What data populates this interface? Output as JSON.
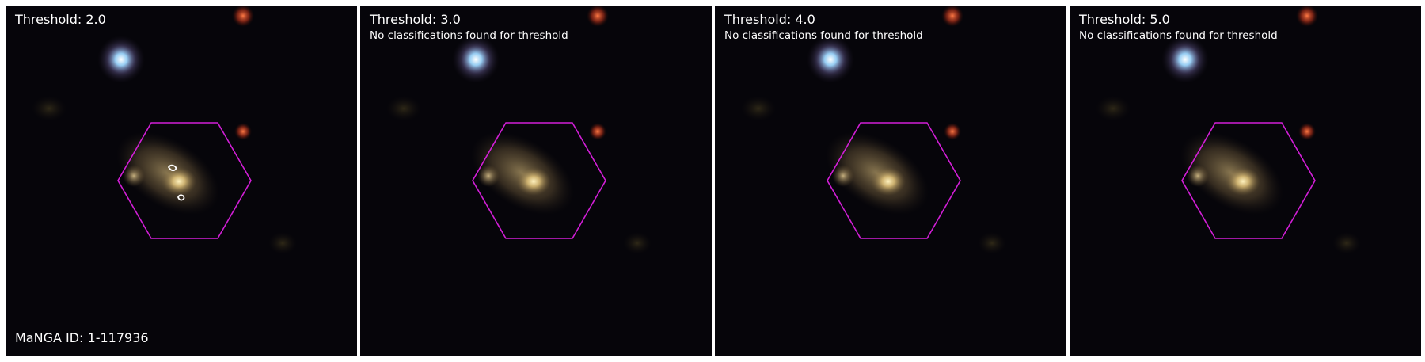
{
  "panels": [
    {
      "title": "Threshold: 2.0",
      "note": "",
      "has_contours": true
    },
    {
      "title": "Threshold: 3.0",
      "note": "No classifications found for threshold",
      "has_contours": false
    },
    {
      "title": "Threshold: 4.0",
      "note": "No classifications found for threshold",
      "has_contours": false
    },
    {
      "title": "Threshold: 5.0",
      "note": "No classifications found for threshold",
      "has_contours": false
    }
  ],
  "manga_id": "MaNGA ID: 1-117936",
  "colors": {
    "hexagon": "#d21ed7",
    "contour": "#ffffff",
    "background": "#06050a",
    "galaxy_core": "#ffe9a0",
    "galaxy_halo": "#b59a62",
    "blue_star": "#8fd0ff",
    "red_star": "#d8431e"
  }
}
